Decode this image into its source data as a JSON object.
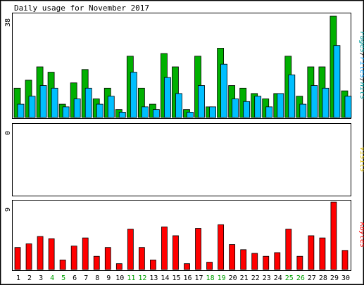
{
  "chart_data": {
    "type": "bar",
    "title": "Daily usage for November 2017",
    "categories": [
      "1",
      "2",
      "3",
      "4",
      "5",
      "6",
      "7",
      "8",
      "9",
      "10",
      "11",
      "12",
      "13",
      "14",
      "15",
      "16",
      "17",
      "18",
      "19",
      "20",
      "21",
      "22",
      "23",
      "24",
      "25",
      "26",
      "27",
      "28",
      "29",
      "30"
    ],
    "weekend_days": [
      "4",
      "5",
      "11",
      "12",
      "18",
      "19",
      "25",
      "26"
    ],
    "panels": [
      {
        "label_parts": [
          {
            "text": "Pages",
            "color": "#00a0a0"
          },
          {
            "text": "/",
            "color": "#000000"
          },
          {
            "text": "Files",
            "color": "#00a0ff"
          },
          {
            "text": "/",
            "color": "#000000"
          },
          {
            "text": "Hits",
            "color": "#00a0a0"
          }
        ],
        "ymax_label": "38",
        "ylim": [
          0,
          38
        ],
        "series": [
          {
            "name": "Hits",
            "color": "#00b000",
            "values": [
              11,
              14,
              19,
              17,
              5,
              13,
              18,
              7,
              11,
              3,
              23,
              11,
              5,
              24,
              19,
              3,
              23,
              4,
              26,
              12,
              11,
              9,
              7,
              9,
              23,
              8,
              19,
              19,
              38,
              10
            ]
          },
          {
            "name": "Files",
            "color": "#00bfff",
            "values": [
              5,
              8,
              12,
              11,
              4,
              7,
              11,
              5,
              8,
              2,
              17,
              4,
              3,
              15,
              9,
              2,
              12,
              4,
              20,
              7,
              6,
              8,
              4,
              9,
              16,
              5,
              12,
              11,
              27,
              8
            ]
          }
        ]
      },
      {
        "label_parts": [
          {
            "text": "Visits",
            "color": "#e0c000"
          }
        ],
        "ymax_label": "0",
        "ylim": [
          0,
          1
        ],
        "series": []
      },
      {
        "label_parts": [
          {
            "text": "KBytes",
            "color": "#ff0000"
          }
        ],
        "ymax_label": "9",
        "ylim": [
          0,
          9
        ],
        "series": [
          {
            "name": "KBytes",
            "color": "#ff0000",
            "values": [
              3,
              3.5,
              4.5,
              4.2,
              1.3,
              3.2,
              4.3,
              1.8,
              3,
              0.8,
              5.5,
              3,
              1.3,
              5.8,
              4.6,
              0.8,
              5.6,
              1,
              6.1,
              3.4,
              2.7,
              2.2,
              1.8,
              2.3,
              5.5,
              1.8,
              4.6,
              4.3,
              9.2,
              2.6
            ]
          }
        ]
      }
    ]
  }
}
